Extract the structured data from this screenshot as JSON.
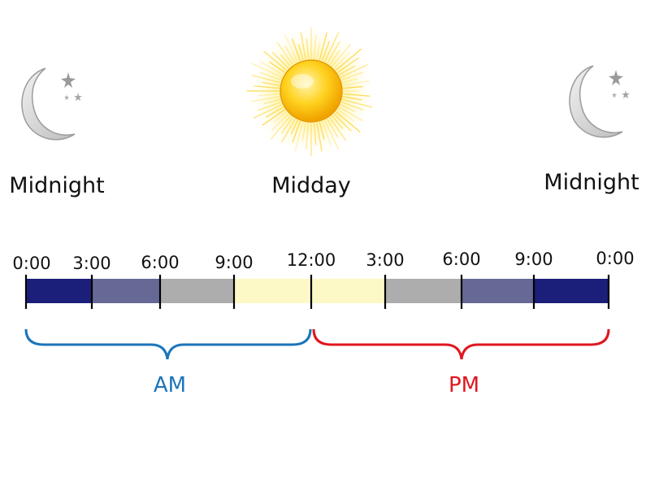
{
  "colors": {
    "night": "#1b1f7a",
    "dusk": "#666896",
    "grey": "#adadad",
    "daylight": "#fdf9c7",
    "am": "#1b75bb",
    "pm": "#e0161e"
  },
  "icons": {
    "left": "moon-stars-icon",
    "center": "sun-icon",
    "right": "moon-stars-icon"
  },
  "labels": {
    "left": "Midnight",
    "center": "Midday",
    "right": "Midnight"
  },
  "timeline": {
    "ticks": [
      "0:00",
      "3:00",
      "6:00",
      "9:00",
      "12:00",
      "3:00",
      "6:00",
      "9:00",
      "0:00"
    ],
    "segments": [
      {
        "from": 0,
        "to": 3,
        "color": "night"
      },
      {
        "from": 3,
        "to": 6,
        "color": "dusk"
      },
      {
        "from": 6,
        "to": 9,
        "color": "grey"
      },
      {
        "from": 9,
        "to": 15,
        "color": "daylight"
      },
      {
        "from": 15,
        "to": 18,
        "color": "grey"
      },
      {
        "from": 18,
        "to": 21,
        "color": "dusk"
      },
      {
        "from": 21,
        "to": 24,
        "color": "night"
      }
    ]
  },
  "halves": {
    "am": "AM",
    "pm": "PM"
  }
}
